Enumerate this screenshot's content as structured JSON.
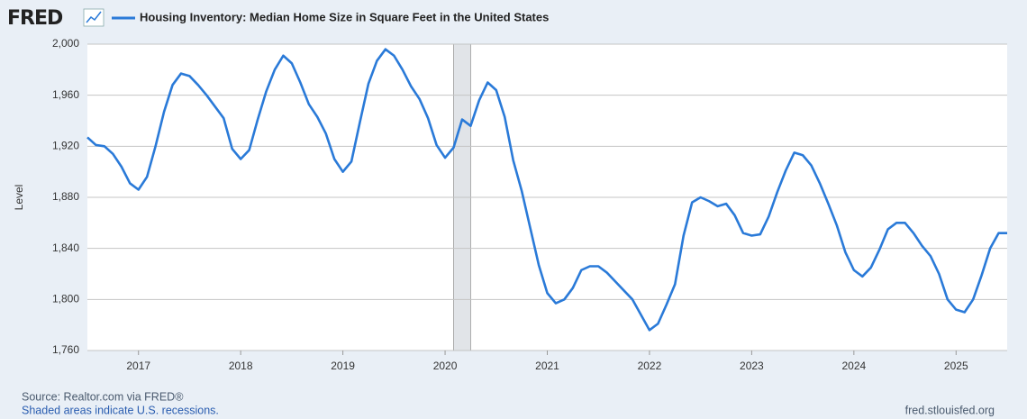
{
  "logo": "FRED",
  "chart_data": {
    "type": "line",
    "ylabel": "Level",
    "series": [
      {
        "name": "Housing Inventory: Median Home Size in Square Feet in the United States",
        "color": "#2a7ad8",
        "values": [
          1927,
          1921,
          1920,
          1914,
          1904,
          1891,
          1886,
          1896,
          1920,
          1947,
          1968,
          1977,
          1975,
          1968,
          1960,
          1951,
          1942,
          1918,
          1910,
          1917,
          1941,
          1963,
          1980,
          1991,
          1985,
          1970,
          1953,
          1943,
          1930,
          1910,
          1900,
          1908,
          1939,
          1969,
          1987,
          1996,
          1991,
          1980,
          1967,
          1957,
          1942,
          1921,
          1911,
          1919,
          1941,
          1936,
          1956,
          1970,
          1964,
          1943,
          1909,
          1885,
          1856,
          1827,
          1805,
          1797,
          1800,
          1809,
          1823,
          1826,
          1826,
          1821,
          1814,
          1807,
          1800,
          1788,
          1776,
          1781,
          1796,
          1812,
          1850,
          1876,
          1880,
          1877,
          1873,
          1875,
          1866,
          1852,
          1850,
          1851,
          1865,
          1884,
          1901,
          1915,
          1913,
          1905,
          1891,
          1875,
          1858,
          1837,
          1823,
          1818,
          1825,
          1839,
          1855,
          1860,
          1860,
          1852,
          1842,
          1834,
          1820,
          1800,
          1792,
          1790,
          1800,
          1819,
          1840,
          1852,
          1852
        ]
      }
    ],
    "x": [
      2016.5,
      2016.5833,
      2016.6667,
      2016.75,
      2016.8333,
      2016.9167,
      2017,
      2017.0833,
      2017.1667,
      2017.25,
      2017.3333,
      2017.4167,
      2017.5,
      2017.5833,
      2017.6667,
      2017.75,
      2017.8333,
      2017.9167,
      2018,
      2018.0833,
      2018.1667,
      2018.25,
      2018.3333,
      2018.4167,
      2018.5,
      2018.5833,
      2018.6667,
      2018.75,
      2018.8333,
      2018.9167,
      2019,
      2019.0833,
      2019.1667,
      2019.25,
      2019.3333,
      2019.4167,
      2019.5,
      2019.5833,
      2019.6667,
      2019.75,
      2019.8333,
      2019.9167,
      2020,
      2020.0833,
      2020.1667,
      2020.25,
      2020.3333,
      2020.4167,
      2020.5,
      2020.5833,
      2020.6667,
      2020.75,
      2020.8333,
      2020.9167,
      2021,
      2021.0833,
      2021.1667,
      2021.25,
      2021.3333,
      2021.4167,
      2021.5,
      2021.5833,
      2021.6667,
      2021.75,
      2021.8333,
      2021.9167,
      2022,
      2022.0833,
      2022.1667,
      2022.25,
      2022.3333,
      2022.4167,
      2022.5,
      2022.5833,
      2022.6667,
      2022.75,
      2022.8333,
      2022.9167,
      2023,
      2023.0833,
      2023.1667,
      2023.25,
      2023.3333,
      2023.4167,
      2023.5,
      2023.5833,
      2023.6667,
      2023.75,
      2023.8333,
      2023.9167,
      2024,
      2024.0833,
      2024.1667,
      2024.25,
      2024.3333,
      2024.4167,
      2024.5,
      2024.5833,
      2024.6667,
      2024.75,
      2024.8333,
      2024.9167,
      2025,
      2025.0833,
      2025.1667,
      2025.25,
      2025.3333,
      2025.4167,
      2025.5
    ],
    "xlim": [
      2016.5,
      2025.5
    ],
    "xticks": [
      2017,
      2018,
      2019,
      2020,
      2021,
      2022,
      2023,
      2024,
      2025
    ],
    "ylim": [
      1760,
      2000
    ],
    "yticks": [
      {
        "value": 1760,
        "label": "1,760"
      },
      {
        "value": 1800,
        "label": "1,800"
      },
      {
        "value": 1840,
        "label": "1,840"
      },
      {
        "value": 1880,
        "label": "1,880"
      },
      {
        "value": 1920,
        "label": "1,920"
      },
      {
        "value": 1960,
        "label": "1,960"
      },
      {
        "value": 2000,
        "label": "2,000"
      }
    ],
    "grid": true,
    "recessions": [
      [
        2020.0833,
        2020.25
      ]
    ]
  },
  "footer": {
    "source": "Source: Realtor.com via FRED®",
    "note": "Shaded areas indicate U.S. recessions.",
    "url": "fred.stlouisfed.org"
  }
}
